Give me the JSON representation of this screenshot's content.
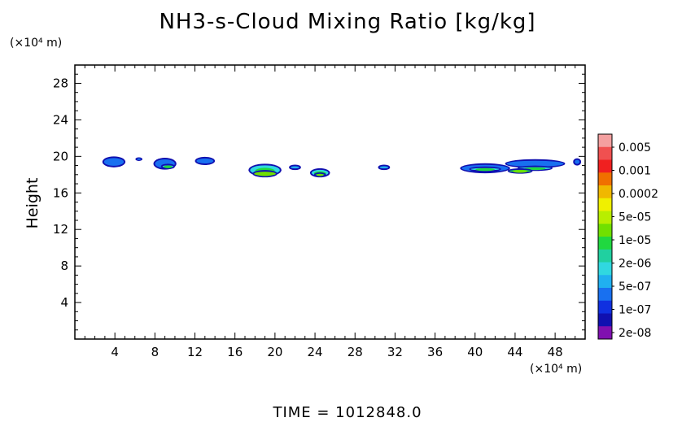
{
  "chart_data": {
    "type": "contour",
    "title": "NH3-s-Cloud Mixing Ratio [kg/kg]",
    "ylabel": "Height",
    "yunit": "(×10⁴ m)",
    "xunit": "(×10⁴ m)",
    "footer": "TIME =  1012848.0",
    "xlim": [
      0,
      51
    ],
    "ylim": [
      0,
      30
    ],
    "xticks": [
      "4",
      "8",
      "12",
      "16",
      "20",
      "24",
      "28",
      "32",
      "36",
      "40",
      "44",
      "48"
    ],
    "yticks": [
      "4",
      "8",
      "12",
      "16",
      "20",
      "24",
      "28"
    ],
    "colorbar": {
      "labels": [
        "0.005",
        "0.001",
        "0.0002",
        "5e-05",
        "1e-05",
        "2e-06",
        "5e-07",
        "1e-07",
        "2e-08"
      ],
      "colors": [
        "#f4a0a0",
        "#f05050",
        "#f02020",
        "#f07000",
        "#f0b800",
        "#f0f000",
        "#b8ee00",
        "#70e000",
        "#20d840",
        "#20d0a0",
        "#30d8e0",
        "#20b0f0",
        "#1870f0",
        "#1030e0",
        "#1010b0",
        "#8010b0"
      ]
    },
    "cloud_patches": [
      {
        "x": 3.9,
        "y": 19.4,
        "w": 2.3,
        "h": 1.2,
        "level": 12
      },
      {
        "x": 6.4,
        "y": 19.7,
        "w": 0.7,
        "h": 0.4,
        "level": 12
      },
      {
        "x": 9.0,
        "y": 19.2,
        "w": 2.3,
        "h": 1.3,
        "level": 12
      },
      {
        "x": 9.3,
        "y": 18.9,
        "w": 1.4,
        "h": 0.6,
        "level": 10
      },
      {
        "x": 13.0,
        "y": 19.5,
        "w": 2.0,
        "h": 0.9,
        "level": 12
      },
      {
        "x": 19.0,
        "y": 18.5,
        "w": 3.3,
        "h": 1.4,
        "level": 10
      },
      {
        "x": 19.0,
        "y": 18.1,
        "w": 2.5,
        "h": 0.8,
        "level": 7
      },
      {
        "x": 22.0,
        "y": 18.8,
        "w": 1.2,
        "h": 0.6,
        "level": 11
      },
      {
        "x": 24.5,
        "y": 18.2,
        "w": 2.0,
        "h": 1.0,
        "level": 10
      },
      {
        "x": 24.5,
        "y": 18.0,
        "w": 1.2,
        "h": 0.5,
        "level": 8
      },
      {
        "x": 30.9,
        "y": 18.8,
        "w": 1.2,
        "h": 0.6,
        "level": 11
      },
      {
        "x": 41.0,
        "y": 18.7,
        "w": 5.0,
        "h": 1.1,
        "level": 12
      },
      {
        "x": 46.0,
        "y": 19.2,
        "w": 6.0,
        "h": 1.0,
        "level": 12
      },
      {
        "x": 41.0,
        "y": 18.6,
        "w": 3.2,
        "h": 0.6,
        "level": 10
      },
      {
        "x": 46.0,
        "y": 18.7,
        "w": 3.5,
        "h": 0.6,
        "level": 10
      },
      {
        "x": 44.5,
        "y": 18.4,
        "w": 2.5,
        "h": 0.6,
        "level": 8
      },
      {
        "x": 50.2,
        "y": 19.4,
        "w": 0.8,
        "h": 0.8,
        "level": 12
      }
    ]
  }
}
